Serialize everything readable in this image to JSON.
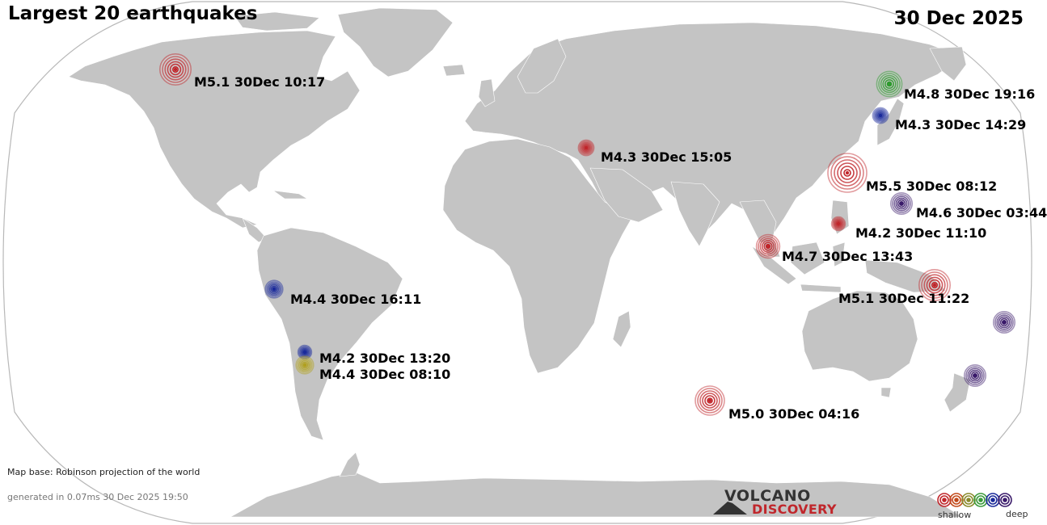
{
  "title": "Largest 20 earthquakes",
  "date": "30 Dec 2025",
  "map_base_note": "Map base: Robinson projection of the world",
  "generated_note": "generated in 0.07ms 30 Dec 2025 19:50",
  "logo": {
    "line1": "VOLCANO",
    "line2": "DISCOVERY"
  },
  "legend": {
    "shallow": "shallow",
    "deep": "deep",
    "colors": [
      "#c0262b",
      "#c24a1a",
      "#8a8a2a",
      "#3a9a3a",
      "#1a2a9a",
      "#3a1a6a"
    ]
  },
  "colors": {
    "land": "#c4c4c4",
    "border": "#ffffff",
    "ocean": "#ffffff",
    "outline": "#b8b8b8",
    "shallow": "#c0262b",
    "intermediate_green": "#2e9a2e",
    "deep_blue": "#1a2a9a",
    "deep_purple": "#3a1a6a",
    "yellow": "#b0a020"
  },
  "quakes": [
    {
      "label": "M5.1 30Dec 10:17",
      "mag": 5.1,
      "color": "#c0262b"
    },
    {
      "label": "M4.8 30Dec 19:16",
      "mag": 4.8,
      "color": "#2e9a2e"
    },
    {
      "label": "M4.3 30Dec 14:29",
      "mag": 4.3,
      "color": "#1a2a9a"
    },
    {
      "label": "M4.3 30Dec 15:05",
      "mag": 4.3,
      "color": "#c0262b"
    },
    {
      "label": "M5.5 30Dec 08:12",
      "mag": 5.5,
      "color": "#c0262b"
    },
    {
      "label": "M4.6 30Dec 03:44",
      "mag": 4.6,
      "color": "#3a1a6a"
    },
    {
      "label": "M4.2 30Dec 11:10",
      "mag": 4.2,
      "color": "#c0262b"
    },
    {
      "label": "M4.7 30Dec 13:43",
      "mag": 4.7,
      "color": "#c0262b"
    },
    {
      "label": "M4.4 30Dec 16:11",
      "mag": 4.4,
      "color": "#1a2a9a"
    },
    {
      "label": "M5.1 30Dec 11:22",
      "mag": 5.1,
      "color": "#c0262b"
    },
    {
      "label": "M4.2 30Dec 13:20",
      "mag": 4.2,
      "color": "#1a2a9a"
    },
    {
      "label": "M4.4 30Dec 08:10",
      "mag": 4.4,
      "color": "#b0a020"
    },
    {
      "label": "M5.0 30Dec 04:16",
      "mag": 5.0,
      "color": "#c0262b"
    },
    {
      "label": "",
      "mag": 4.6,
      "color": "#3a1a6a"
    },
    {
      "label": "",
      "mag": 4.6,
      "color": "#3a1a6a"
    }
  ]
}
